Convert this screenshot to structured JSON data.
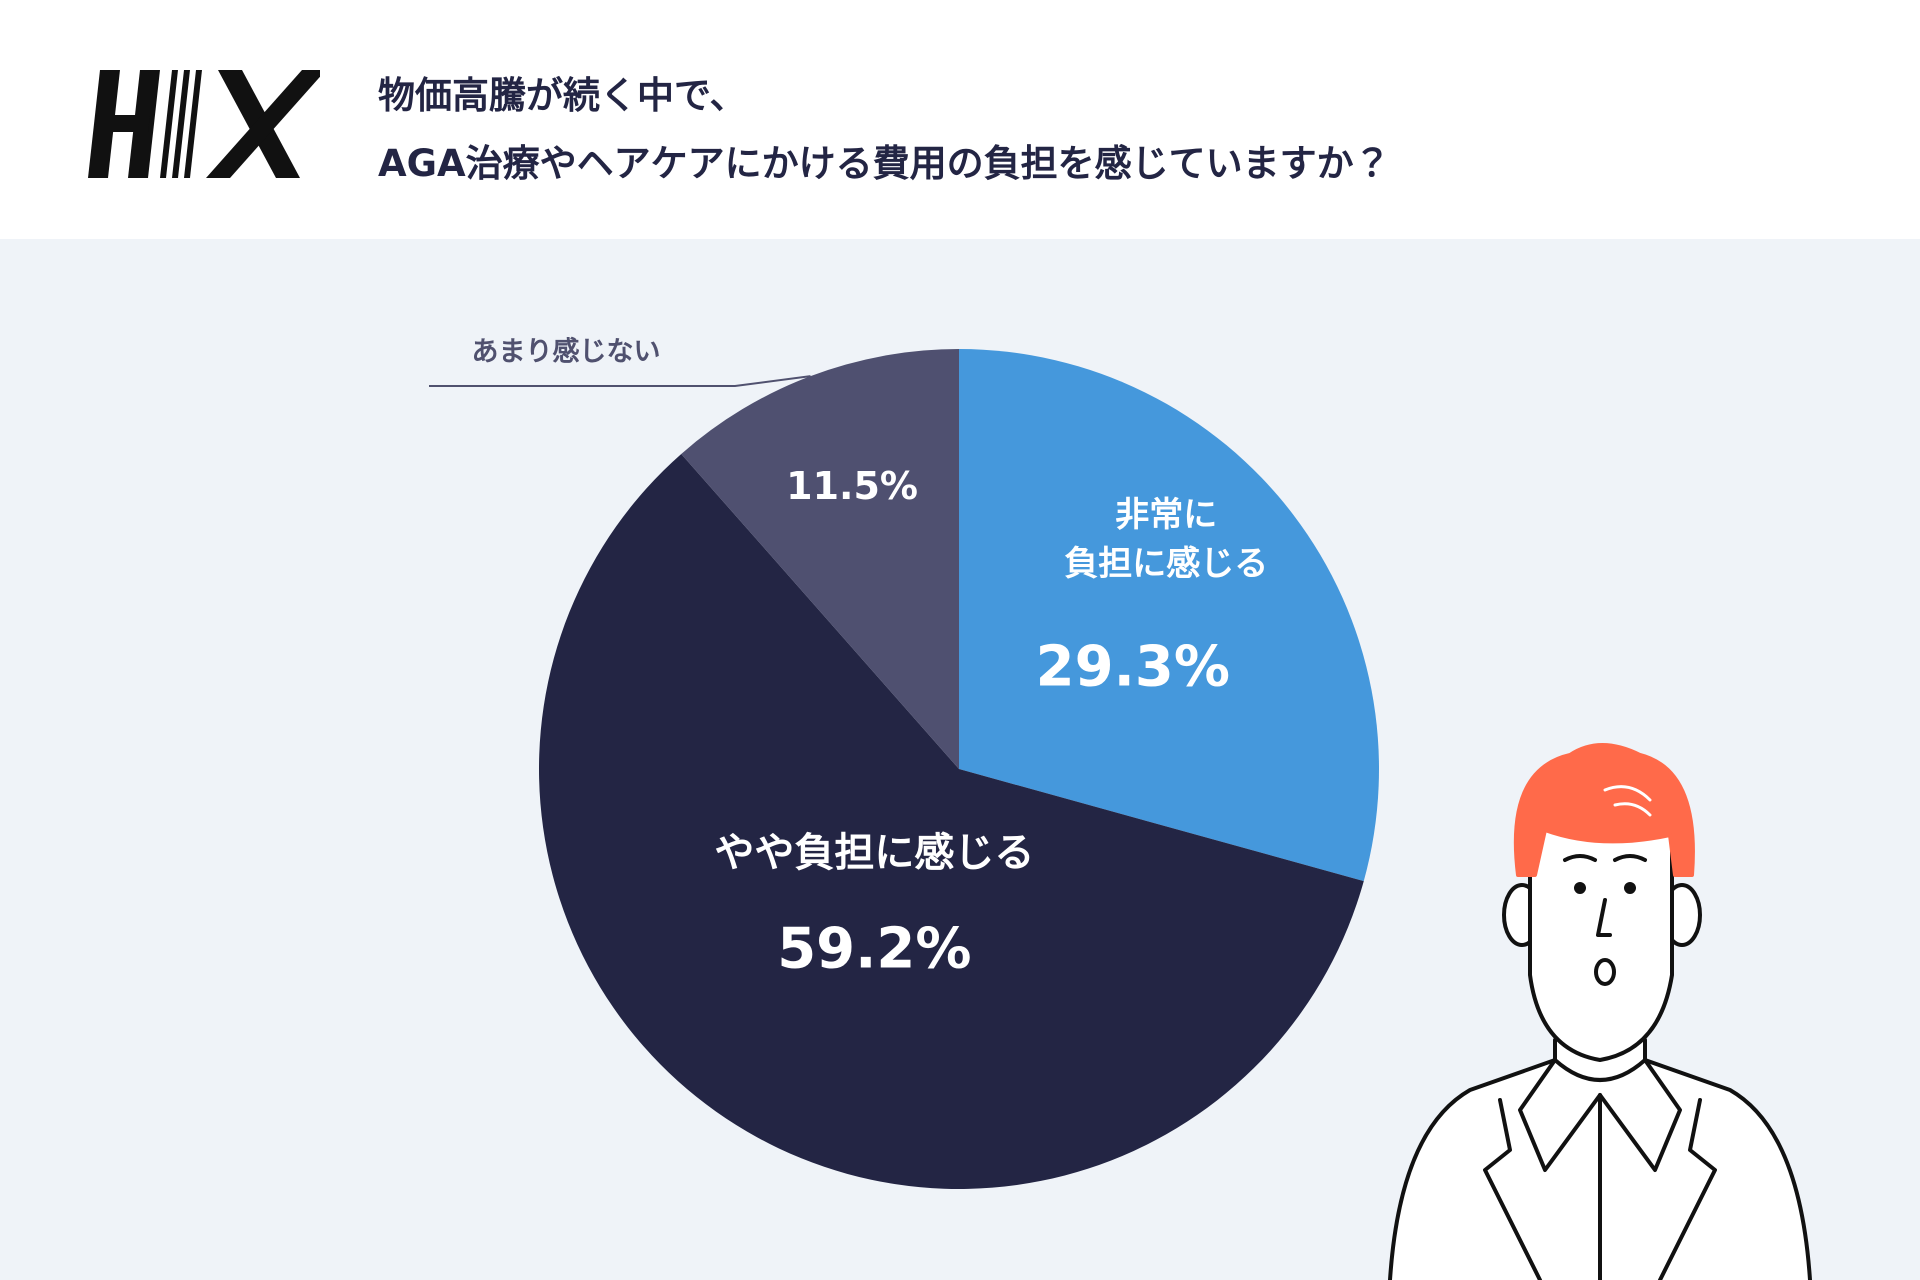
{
  "chart_data": {
    "type": "pie",
    "title": "物価高騰が続く中で、\nAGA治療やヘアケアにかける費用の負担を感じていますか？",
    "categories": [
      "非常に\n負担に感じる",
      "やや負担に感じる",
      "あまり感じない"
    ],
    "values": [
      29.3,
      59.2,
      11.5
    ],
    "value_labels": [
      "29.3%",
      "59.2%",
      "11.5%"
    ],
    "colors": [
      "#4598dc",
      "#232544",
      "#4f5070"
    ]
  }
}
